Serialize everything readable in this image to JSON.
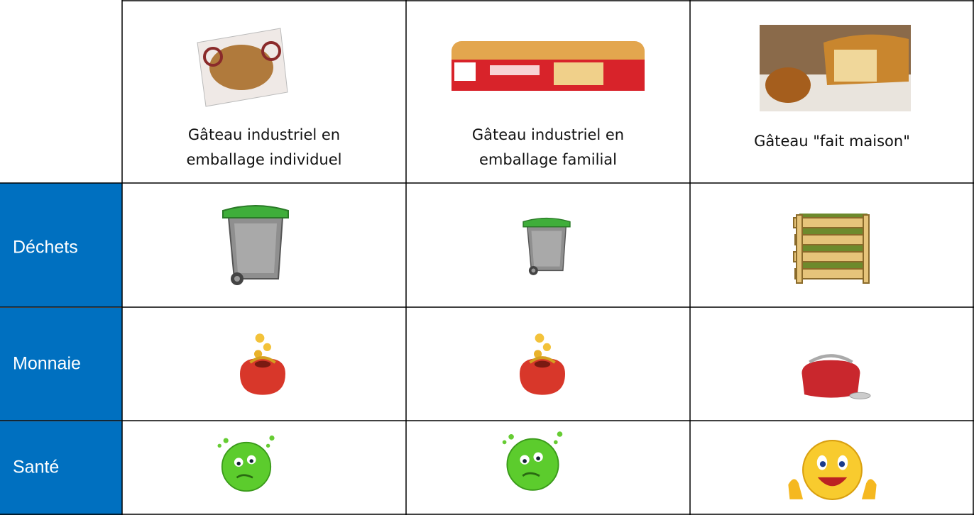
{
  "table": {
    "columns": [
      [
        "Gâteau industriel en",
        "emballage individuel"
      ],
      [
        "Gâteau industriel en",
        "emballage familial"
      ],
      [
        "Gâteau \"fait maison\""
      ]
    ],
    "rows": [
      "Déchets",
      "Monnaie",
      "Santé"
    ]
  }
}
